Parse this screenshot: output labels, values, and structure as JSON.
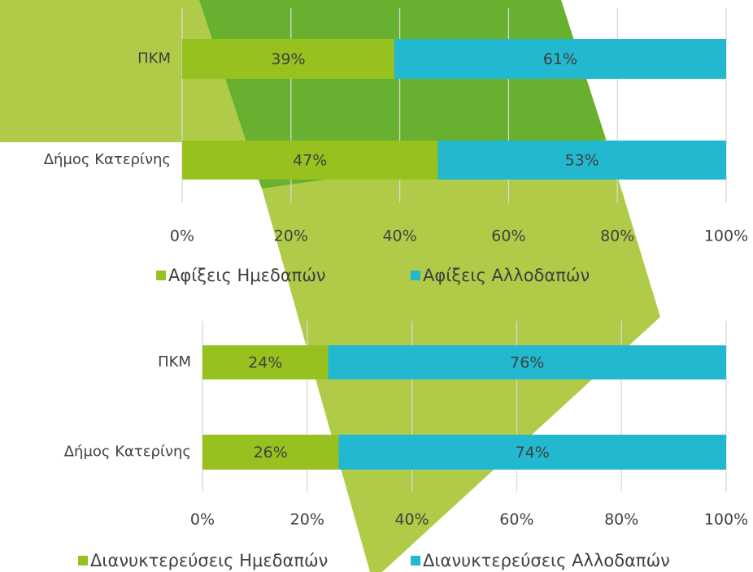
{
  "chart_data": [
    {
      "type": "bar",
      "orientation": "horizontal",
      "stacked": true,
      "categories": [
        "ΠΚΜ",
        "Δήμος Κατερίνης"
      ],
      "series": [
        {
          "name": "Αφίξεις Ημεδαπών",
          "color": "#97c11f",
          "values": [
            39,
            47
          ],
          "value_labels": [
            "39%",
            "47%"
          ]
        },
        {
          "name": "Αφίξεις Αλλοδαπών",
          "color": "#22b8cf",
          "values": [
            61,
            53
          ],
          "value_labels": [
            "61%",
            "53%"
          ]
        }
      ],
      "xlim": [
        0,
        100
      ],
      "xticks": [
        {
          "value": 0,
          "label": "0%"
        },
        {
          "value": 20,
          "label": "20%"
        },
        {
          "value": 40,
          "label": "40%"
        },
        {
          "value": 60,
          "label": "60%"
        },
        {
          "value": 80,
          "label": "80%"
        },
        {
          "value": 100,
          "label": "100%"
        }
      ],
      "grid": true,
      "legend": "bottom"
    },
    {
      "type": "bar",
      "orientation": "horizontal",
      "stacked": true,
      "categories": [
        "ΠΚΜ",
        "Δήμος Κατερίνης"
      ],
      "series": [
        {
          "name": "Διανυκτερεύσεις Ημεδαπών",
          "color": "#97c11f",
          "values": [
            24,
            26
          ],
          "value_labels": [
            "24%",
            "26%"
          ]
        },
        {
          "name": "Διανυκτερεύσεις Αλλοδαπών",
          "color": "#22b8cf",
          "values": [
            76,
            74
          ],
          "value_labels": [
            "76%",
            "74%"
          ]
        }
      ],
      "xlim": [
        0,
        100
      ],
      "xticks": [
        {
          "value": 0,
          "label": "0%"
        },
        {
          "value": 20,
          "label": "20%"
        },
        {
          "value": 40,
          "label": "40%"
        },
        {
          "value": 60,
          "label": "60%"
        },
        {
          "value": 80,
          "label": "80%"
        },
        {
          "value": 100,
          "label": "100%"
        }
      ],
      "grid": true,
      "legend": "bottom"
    }
  ]
}
